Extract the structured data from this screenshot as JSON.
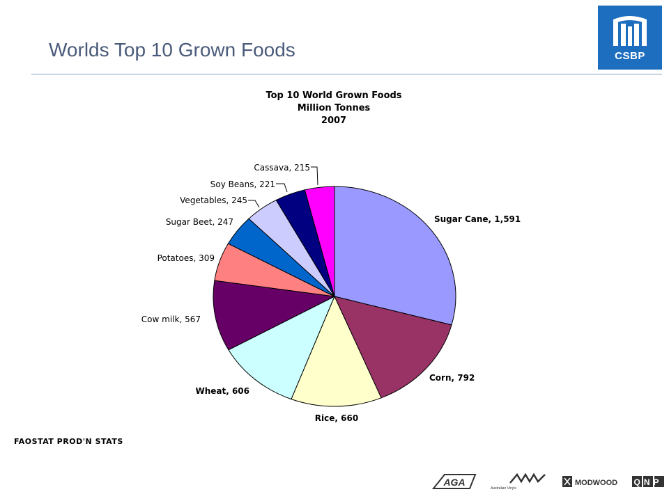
{
  "slide": {
    "title": "Worlds Top 10 Grown Foods",
    "source": "FAOSTAT PROD'N STATS"
  },
  "logo": {
    "text": "CSBP",
    "color": "#1e6ec0"
  },
  "partners": [
    {
      "name": "AGA",
      "label": "AGA"
    },
    {
      "name": "australian-vinyls",
      "label": "Australian Vinyls"
    },
    {
      "name": "modwood",
      "label": "MODWOOD"
    },
    {
      "name": "qnp",
      "label": "QNP"
    }
  ],
  "chart_data": {
    "type": "pie",
    "title": [
      "Top 10 World Grown Foods",
      "Million Tonnes",
      "2007"
    ],
    "slices": [
      {
        "label": "Sugar Cane",
        "value": 1591,
        "display": "Sugar Cane, 1,591",
        "color": "#9999ff",
        "bold": true
      },
      {
        "label": "Corn",
        "value": 792,
        "display": "Corn, 792",
        "color": "#993366",
        "bold": true
      },
      {
        "label": "Rice",
        "value": 660,
        "display": "Rice, 660",
        "color": "#ffffcc",
        "bold": true
      },
      {
        "label": "Wheat",
        "value": 606,
        "display": "Wheat, 606",
        "color": "#ccffff",
        "bold": true
      },
      {
        "label": "Cow milk",
        "value": 567,
        "display": "Cow milk, 567",
        "color": "#660066",
        "bold": false
      },
      {
        "label": "Potatoes",
        "value": 309,
        "display": "Potatoes, 309",
        "color": "#ff8080",
        "bold": false
      },
      {
        "label": "Sugar Beet",
        "value": 247,
        "display": "Sugar Beet, 247",
        "color": "#0066cc",
        "bold": false
      },
      {
        "label": "Vegetables",
        "value": 245,
        "display": "Vegetables, 245",
        "color": "#ccccff",
        "bold": false
      },
      {
        "label": "Soy Beans",
        "value": 221,
        "display": "Soy Beans, 221",
        "color": "#000080",
        "bold": false
      },
      {
        "label": "Cassava",
        "value": 215,
        "display": "Cassava, 215",
        "color": "#ff00ff",
        "bold": false
      }
    ]
  }
}
